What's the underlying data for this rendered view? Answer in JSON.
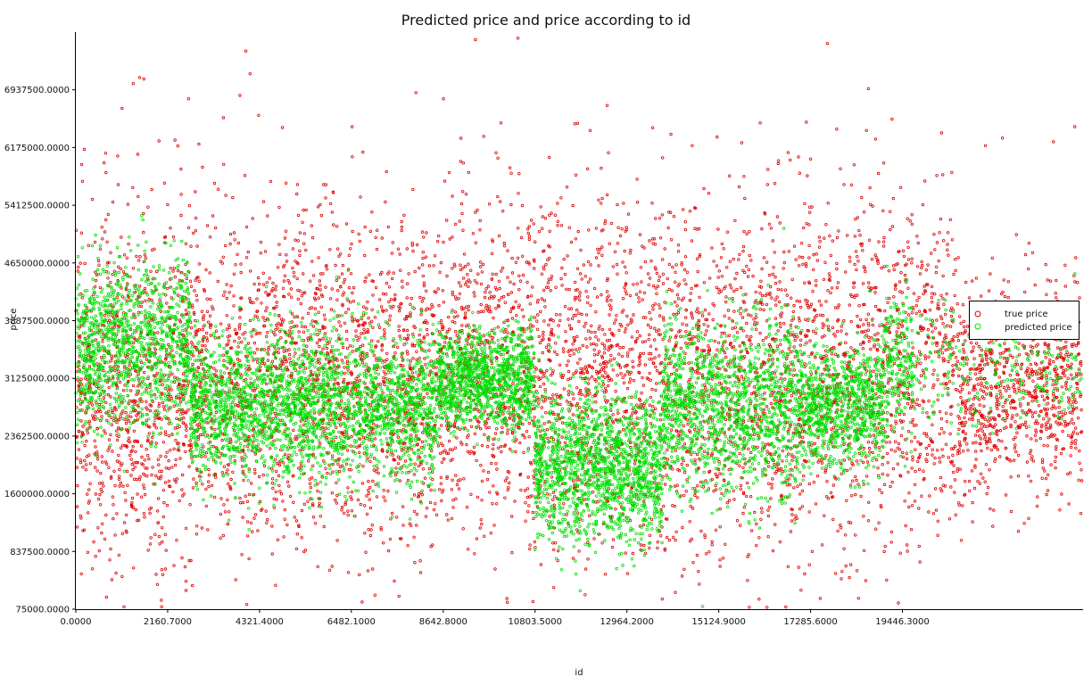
{
  "chart_data": {
    "type": "scatter",
    "title": "Predicted price and price according to id",
    "xlabel": "id",
    "ylabel": "price",
    "xlim": [
      0,
      23675
    ],
    "ylim": [
      75000,
      7700000
    ],
    "xticks": [
      0,
      2160.7,
      4321.4,
      6482.1,
      8642.8,
      10803.5,
      12964.2,
      15124.9,
      17285.6,
      19446.3
    ],
    "xtick_labels": [
      "0.0000",
      "2160.7000",
      "4321.4000",
      "6482.1000",
      "8642.8000",
      "10803.5000",
      "12964.2000",
      "15124.9000",
      "17285.6000",
      "19446.3000"
    ],
    "yticks": [
      75000,
      837500,
      1600000,
      2362500,
      3125000,
      3887500,
      4650000,
      5412500,
      6175000,
      6937500
    ],
    "ytick_labels": [
      "75000.0000",
      "837500.0000",
      "1600000.0000",
      "2362500.0000",
      "3125000.0000",
      "3887500.0000",
      "4650000.0000",
      "5412500.0000",
      "6175000.0000",
      "6937500.0000"
    ],
    "grid": false,
    "legend_position": "right",
    "series": [
      {
        "name": "true price",
        "color": "#dd0000",
        "marker": "open-circle",
        "segments": [
          {
            "x0": 0,
            "x1": 2700,
            "mean": 2850000,
            "sd": 1150000,
            "n": 900
          },
          {
            "x0": 2700,
            "x1": 9000,
            "mean": 3100000,
            "sd": 1050000,
            "n": 1900
          },
          {
            "x0": 9000,
            "x1": 10800,
            "mean": 3250000,
            "sd": 1100000,
            "n": 550
          },
          {
            "x0": 10800,
            "x1": 19000,
            "mean": 3150000,
            "sd": 1150000,
            "n": 2300
          },
          {
            "x0": 19000,
            "x1": 20700,
            "mean": 3300000,
            "sd": 1100000,
            "n": 450
          },
          {
            "x0": 20700,
            "x1": 23675,
            "mean": 2950000,
            "sd": 650000,
            "n": 850
          }
        ],
        "outliers": [
          {
            "x": 10400,
            "y": 7620000
          },
          {
            "x": 9400,
            "y": 7600000
          },
          {
            "x": 4000,
            "y": 7450000
          },
          {
            "x": 4100,
            "y": 7150000
          },
          {
            "x": 1500,
            "y": 7100000
          },
          {
            "x": 1600,
            "y": 7080000
          },
          {
            "x": 1350,
            "y": 7020000
          },
          {
            "x": 8000,
            "y": 6900000
          },
          {
            "x": 8650,
            "y": 6820000
          },
          {
            "x": 2650,
            "y": 6820000
          },
          {
            "x": 12500,
            "y": 6730000
          },
          {
            "x": 4300,
            "y": 6600000
          },
          {
            "x": 10000,
            "y": 6500000
          },
          {
            "x": 6500,
            "y": 6450000
          },
          {
            "x": 12100,
            "y": 6400000
          },
          {
            "x": 14000,
            "y": 6350000
          },
          {
            "x": 16100,
            "y": 6500000
          },
          {
            "x": 18600,
            "y": 6400000
          },
          {
            "x": 19200,
            "y": 6550000
          },
          {
            "x": 21800,
            "y": 6300000
          },
          {
            "x": 23000,
            "y": 6250000
          },
          {
            "x": 23500,
            "y": 6450000
          },
          {
            "x": 21400,
            "y": 6200000
          },
          {
            "x": 17000,
            "y": 6050000
          },
          {
            "x": 200,
            "y": 6150000
          },
          {
            "x": 700,
            "y": 6100000
          },
          {
            "x": 14500,
            "y": 6200000
          }
        ]
      },
      {
        "name": "predicted price",
        "color": "#00dd00",
        "marker": "open-circle",
        "segments": [
          {
            "x0": 0,
            "x1": 2700,
            "mean": 3550000,
            "sd": 550000,
            "n": 1150
          },
          {
            "x0": 2700,
            "x1": 8500,
            "mean": 2750000,
            "sd": 480000,
            "n": 2500
          },
          {
            "x0": 8500,
            "x1": 10800,
            "mean": 3100000,
            "sd": 320000,
            "n": 1150
          },
          {
            "x0": 10800,
            "x1": 13800,
            "mean": 1950000,
            "sd": 480000,
            "n": 1550
          },
          {
            "x0": 13800,
            "x1": 17000,
            "mean": 2750000,
            "sd": 550000,
            "n": 1350
          },
          {
            "x0": 17000,
            "x1": 19000,
            "mean": 2750000,
            "sd": 400000,
            "n": 900
          },
          {
            "x0": 19000,
            "x1": 19700,
            "mean": 3300000,
            "sd": 450000,
            "n": 220
          },
          {
            "x0": 19700,
            "x1": 23675,
            "mean": 3250000,
            "sd": 380000,
            "n": 250
          }
        ],
        "outliers": []
      }
    ]
  }
}
